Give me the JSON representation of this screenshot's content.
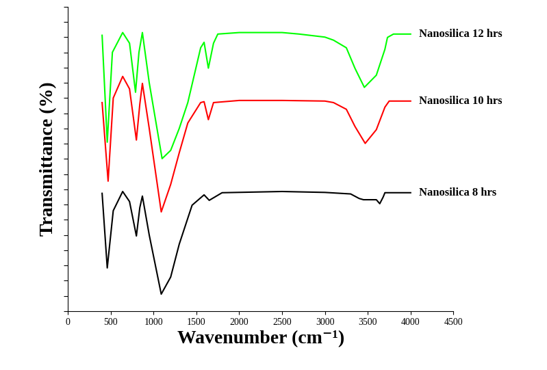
{
  "chart_data": {
    "type": "line",
    "x_label": "Wavenumber (cm⁻¹)",
    "y_label": "Transmittance (%)",
    "xlim": [
      0,
      4500
    ],
    "xticks": [
      0,
      500,
      1000,
      1500,
      2000,
      2500,
      3000,
      3500,
      4000,
      4500
    ],
    "ylim": [
      0,
      100
    ],
    "yticks": [
      0,
      5,
      10,
      15,
      20,
      25,
      30,
      35,
      40,
      45,
      50,
      55,
      60,
      65,
      70,
      75,
      80,
      85,
      90,
      95,
      100
    ],
    "tick_labels": "x",
    "series": [
      {
        "name": "Nanosilica 12 hrs",
        "color": "#00ff00",
        "x": [
          400,
          460,
          520,
          640,
          720,
          790,
          830,
          870,
          950,
          1100,
          1200,
          1300,
          1400,
          1550,
          1590,
          1640,
          1700,
          1750,
          2000,
          2500,
          2700,
          3000,
          3100,
          3250,
          3350,
          3460,
          3600,
          3700,
          3730,
          3800,
          4000
        ],
        "values": [
          90.6,
          55.5,
          85.0,
          91.5,
          88.0,
          71.9,
          85.0,
          91.5,
          75.0,
          50.1,
          52.8,
          60.0,
          68.5,
          86.5,
          88.3,
          79.8,
          88.0,
          91.0,
          91.5,
          91.5,
          91.0,
          90.0,
          89.0,
          86.5,
          79.8,
          73.5,
          77.5,
          86.0,
          89.9,
          91.0,
          91.0
        ]
      },
      {
        "name": "Nanosilica 10 hrs",
        "color": "#ff0000",
        "x": [
          400,
          470,
          530,
          640,
          720,
          800,
          840,
          870,
          950,
          1090,
          1200,
          1300,
          1400,
          1550,
          1590,
          1640,
          1700,
          2000,
          2500,
          3000,
          3100,
          3250,
          3350,
          3470,
          3600,
          3700,
          3750,
          4000
        ],
        "values": [
          68.5,
          42.7,
          70.0,
          77.1,
          73.0,
          56.2,
          68.0,
          74.8,
          60.0,
          32.6,
          41.6,
          52.0,
          61.8,
          68.5,
          68.8,
          62.9,
          68.5,
          69.2,
          69.2,
          69.0,
          68.5,
          66.3,
          60.7,
          55.1,
          59.6,
          67.0,
          69.0,
          69.0
        ]
      },
      {
        "name": "Nanosilica 8 hrs",
        "color": "#000000",
        "x": [
          400,
          460,
          530,
          640,
          720,
          800,
          840,
          870,
          950,
          1090,
          1200,
          1300,
          1450,
          1590,
          1650,
          1800,
          2500,
          3000,
          3300,
          3400,
          3450,
          3600,
          3640,
          3680,
          3700,
          4000
        ],
        "values": [
          38.7,
          14.2,
          33.0,
          39.3,
          36.0,
          24.7,
          34.0,
          37.8,
          25.0,
          5.6,
          11.2,
          22.0,
          34.8,
          38.2,
          36.4,
          38.9,
          39.3,
          39.0,
          38.5,
          37.0,
          36.6,
          36.6,
          35.3,
          37.5,
          38.9,
          38.9
        ]
      }
    ]
  }
}
